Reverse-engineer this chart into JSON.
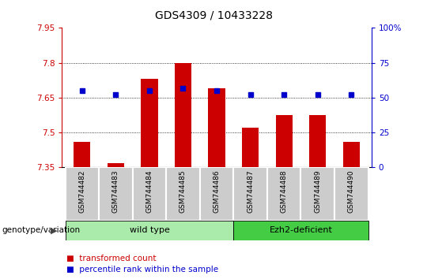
{
  "title": "GDS4309 / 10433228",
  "samples": [
    "GSM744482",
    "GSM744483",
    "GSM744484",
    "GSM744485",
    "GSM744486",
    "GSM744487",
    "GSM744488",
    "GSM744489",
    "GSM744490"
  ],
  "red_values": [
    7.46,
    7.37,
    7.73,
    7.8,
    7.69,
    7.52,
    7.575,
    7.575,
    7.46
  ],
  "blue_percentiles": [
    55,
    52,
    55,
    57,
    55,
    52,
    52,
    52,
    52
  ],
  "ymin": 7.35,
  "ymax": 7.95,
  "yticks": [
    7.35,
    7.5,
    7.65,
    7.8,
    7.95
  ],
  "ytick_labels": [
    "7.35",
    "7.5",
    "7.65",
    "7.8",
    "7.95"
  ],
  "right_yticks": [
    0,
    25,
    50,
    75,
    100
  ],
  "right_ytick_labels": [
    "0",
    "25",
    "50",
    "75",
    "100%"
  ],
  "wild_type_label": "wild type",
  "ezh2_label": "Ezh2-deficient",
  "genotype_label": "genotype/variation",
  "legend_red": "transformed count",
  "legend_blue": "percentile rank within the sample",
  "bar_color": "#cc0000",
  "dot_color": "#0000cc",
  "plot_bg": "#ffffff",
  "wild_type_bg": "#aaeaaa",
  "ezh2_bg": "#44cc44",
  "sample_bg": "#cccccc",
  "left_axis_color": "#cc0000",
  "right_axis_color": "#0000cc",
  "bar_width": 0.5,
  "title_fontsize": 10,
  "n_wild": 5,
  "n_ezh2": 4
}
